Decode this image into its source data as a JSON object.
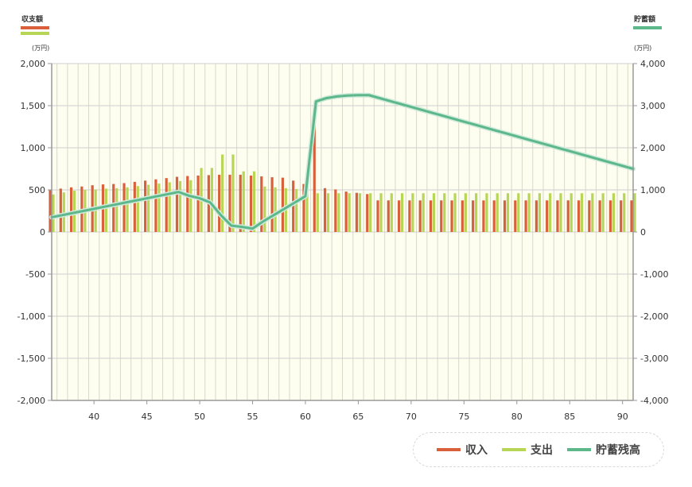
{
  "header": {
    "left_title": "収支額",
    "right_title": "貯蓄額",
    "left_unit": "(万円)",
    "right_unit": "(万円)"
  },
  "colors": {
    "income": "#d9603b",
    "expense": "#b8d655",
    "savings": "#5cb88a",
    "plot_bg": "#fdfdf0",
    "grid": "#d9d9c8"
  },
  "legend": [
    {
      "label": "収入",
      "color": "#d9603b"
    },
    {
      "label": "支出",
      "color": "#b8d655"
    },
    {
      "label": "貯蓄残高",
      "color": "#5cb88a"
    }
  ],
  "chart_data": {
    "type": "bar+line",
    "x_range": [
      36,
      91
    ],
    "x_ticks": [
      "40",
      "45",
      "50",
      "55",
      "60",
      "65",
      "70",
      "75",
      "80",
      "85",
      "90"
    ],
    "y_left_ticks": [
      "2,000",
      "1,500",
      "1,000",
      "500",
      "0",
      "-500",
      "-1,000",
      "-1,500",
      "-2,000"
    ],
    "y_right_ticks": [
      "4,000",
      "3,000",
      "2,000",
      "1,000",
      "0",
      "-1,000",
      "-2,000",
      "-3,000",
      "-4,000"
    ],
    "ylim_left": [
      -2000,
      2000
    ],
    "ylim_right": [
      -4000,
      4000
    ],
    "grid": true,
    "legend_position": "bottom-right",
    "x": [
      36,
      37,
      38,
      39,
      40,
      41,
      42,
      43,
      44,
      45,
      46,
      47,
      48,
      49,
      50,
      51,
      52,
      53,
      54,
      55,
      56,
      57,
      58,
      59,
      60,
      61,
      62,
      63,
      64,
      65,
      66,
      67,
      68,
      69,
      70,
      71,
      72,
      73,
      74,
      75,
      76,
      77,
      78,
      79,
      80,
      81,
      82,
      83,
      84,
      85,
      86,
      87,
      88,
      89,
      90,
      91
    ],
    "series": [
      {
        "name": "収入",
        "kind": "bar",
        "axis": "left",
        "values": [
          505,
          515,
          530,
          540,
          555,
          565,
          570,
          580,
          595,
          610,
          625,
          640,
          655,
          665,
          670,
          675,
          680,
          680,
          680,
          670,
          660,
          650,
          645,
          610,
          570,
          1510,
          520,
          505,
          480,
          465,
          450,
          375,
          375,
          375,
          375,
          375,
          375,
          375,
          375,
          375,
          375,
          375,
          375,
          375,
          375,
          375,
          375,
          375,
          375,
          375,
          375,
          375,
          375,
          375,
          375,
          375
        ]
      },
      {
        "name": "支出",
        "kind": "bar",
        "axis": "left",
        "values": [
          445,
          470,
          490,
          500,
          505,
          515,
          520,
          530,
          545,
          560,
          575,
          590,
          605,
          615,
          760,
          760,
          920,
          920,
          720,
          720,
          540,
          530,
          520,
          510,
          500,
          460,
          460,
          460,
          460,
          460,
          460,
          460,
          460,
          460,
          460,
          460,
          460,
          460,
          460,
          460,
          460,
          460,
          460,
          460,
          460,
          460,
          460,
          460,
          460,
          460,
          460,
          460,
          460,
          460,
          460,
          460
        ]
      },
      {
        "name": "貯蓄残高",
        "kind": "line",
        "axis": "right",
        "values": [
          350,
          400,
          450,
          500,
          550,
          600,
          650,
          700,
          750,
          800,
          850,
          900,
          950,
          860,
          800,
          700,
          400,
          150,
          120,
          80,
          250,
          400,
          550,
          700,
          850,
          3100,
          3180,
          3220,
          3240,
          3250,
          3250,
          3180,
          3110,
          3040,
          2970,
          2900,
          2830,
          2760,
          2690,
          2620,
          2550,
          2480,
          2410,
          2340,
          2270,
          2200,
          2130,
          2060,
          1990,
          1920,
          1850,
          1780,
          1710,
          1640,
          1570,
          1500
        ]
      }
    ]
  }
}
